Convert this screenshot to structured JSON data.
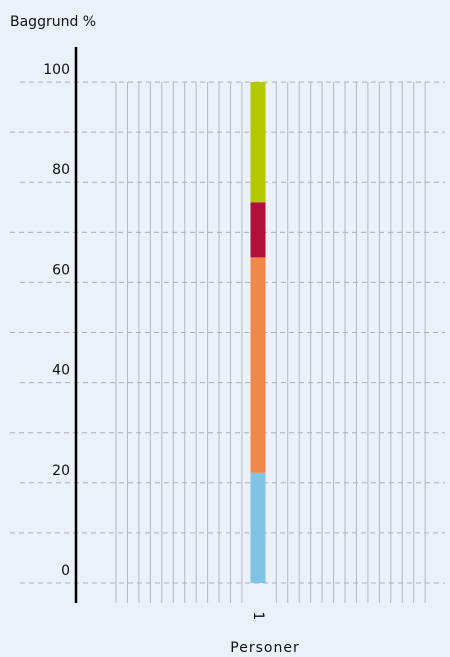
{
  "chart_data": {
    "type": "stacked_bar",
    "title": "Baggrund %",
    "x_label": "Personer",
    "categories": [
      "1"
    ],
    "series": [
      {
        "color": "#7fc3e6",
        "values": [
          22
        ]
      },
      {
        "color": "#f0884a",
        "values": [
          43
        ]
      },
      {
        "color": "#b0103a",
        "values": [
          11
        ]
      },
      {
        "color": "#b4c800",
        "values": [
          24
        ]
      }
    ],
    "ylim": [
      -4,
      107
    ],
    "yticks": [
      0,
      20,
      40,
      60,
      80,
      100
    ],
    "minor_yticks": [
      10,
      30,
      50,
      70,
      90
    ],
    "grid": true
  }
}
